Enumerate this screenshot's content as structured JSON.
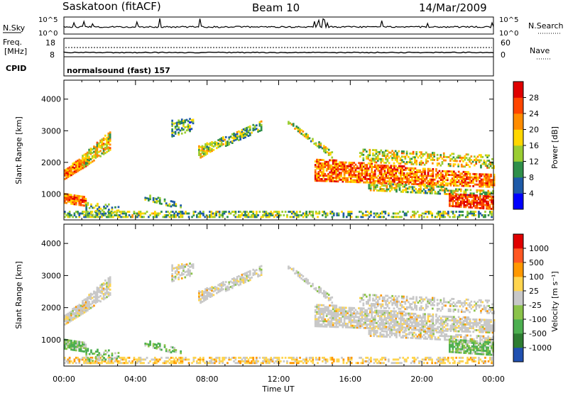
{
  "header": {
    "station": "Saskatoon (fitACF)",
    "beam": "Beam 10",
    "date": "14/Mar/2009"
  },
  "noise_panel": {
    "left_label": "N.Sky",
    "right_label": "N.Search",
    "left_ticks": [
      "10^5",
      "10^0"
    ],
    "right_ticks": [
      "10^5",
      "10^0"
    ]
  },
  "freq_panel": {
    "left_label_1": "Freq.",
    "left_label_2": "[MHz]",
    "left_ticks": [
      "18",
      "8"
    ],
    "right_label": "Nave",
    "right_ticks": [
      "60",
      "0"
    ]
  },
  "cpid_panel": {
    "label": "CPID",
    "mode_text": "normalsound (fast) 157"
  },
  "power_panel": {
    "ylabel": "Slant Range [km]",
    "colorbar_label": "Power [dB]",
    "colorbar_ticks": [
      "28",
      "24",
      "20",
      "16",
      "12",
      "8",
      "4"
    ],
    "colors": [
      "#0000ff",
      "#1e5aa8",
      "#2f8f4a",
      "#9acd32",
      "#ffd700",
      "#ff8c00",
      "#ff4500",
      "#e00000"
    ]
  },
  "velocity_panel": {
    "ylabel": "Slant Range [km]",
    "colorbar_label": "Velocity [m s⁻¹]",
    "colorbar_ticks": [
      "1000",
      "500",
      "100",
      "25",
      "-25",
      "-100",
      "-500",
      "-1000"
    ],
    "colors": [
      "#2050b0",
      "#2e7d32",
      "#4caf50",
      "#8bc34a",
      "#c8c8c8",
      "#ffd54f",
      "#ff9800",
      "#ff5722",
      "#e00000"
    ]
  },
  "chart_data": {
    "type": "heatmap",
    "xlabel": "Time UT",
    "x_ticks": [
      "00:00",
      "04:00",
      "08:00",
      "12:00",
      "16:00",
      "20:00",
      "00:00"
    ],
    "x_range_hours": [
      0,
      24
    ],
    "ylim_km": [
      180,
      4600
    ],
    "y_ticks": [
      1000,
      2000,
      3000,
      4000
    ],
    "power_scale_db": [
      0,
      30
    ],
    "velocity_scale": [
      -1000,
      1000
    ]
  }
}
